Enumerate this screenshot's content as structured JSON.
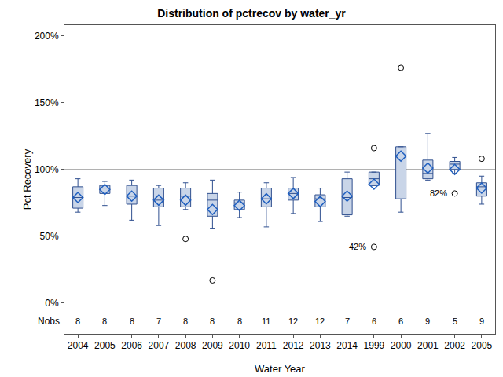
{
  "chart_data": {
    "type": "box",
    "title": "Distribution of pctrecov by water_yr",
    "x_label": "Water Year",
    "y_label": "Pct Recovery",
    "categories": [
      "2004",
      "2005",
      "2006",
      "2007",
      "2008",
      "2009",
      "2010",
      "2011",
      "2012",
      "2013",
      "2014",
      "1999",
      "2000",
      "2001",
      "2002",
      "2005"
    ],
    "lower_whisker": [
      68,
      73,
      62,
      58,
      70,
      56,
      64,
      57,
      67,
      61,
      65,
      88,
      68,
      92,
      97,
      74
    ],
    "q1": [
      71,
      82,
      74,
      72,
      72,
      65,
      70,
      72,
      77,
      72,
      66,
      88,
      78,
      93,
      100,
      80
    ],
    "median": [
      79,
      86,
      80,
      77,
      80,
      77,
      75,
      78,
      82,
      78,
      79,
      93,
      116,
      97,
      104,
      87
    ],
    "q3": [
      87,
      88,
      88,
      86,
      86,
      82,
      77,
      86,
      86,
      81,
      93,
      98,
      117,
      107,
      106,
      90
    ],
    "upper_whisker": [
      93,
      91,
      92,
      88,
      90,
      92,
      83,
      90,
      94,
      86,
      98,
      98,
      117,
      127,
      109,
      95
    ],
    "mean": [
      79,
      85,
      80,
      77,
      77,
      70,
      73,
      78,
      82,
      76,
      80,
      89,
      110,
      101,
      100,
      86
    ],
    "outliers": [
      [],
      [],
      [],
      [],
      [
        48
      ],
      [
        17
      ],
      [],
      [],
      [],
      [],
      [],
      [
        116,
        42
      ],
      [
        176
      ],
      [],
      [
        82
      ],
      [
        108
      ]
    ],
    "nobs_label": "Nobs",
    "nobs": [
      8,
      8,
      8,
      7,
      8,
      8,
      8,
      11,
      12,
      12,
      7,
      6,
      6,
      9,
      5,
      9
    ],
    "reference_line": 100,
    "annotations": [
      {
        "category_index": 11,
        "y": 42,
        "text": "42%"
      },
      {
        "category_index": 14,
        "y": 82,
        "text": "82%"
      }
    ],
    "color": "#c9d5e8",
    "ylim": [
      -23,
      208
    ],
    "yticks": [
      {
        "value": 0,
        "label": "0%"
      },
      {
        "value": 50,
        "label": "50%"
      },
      {
        "value": 100,
        "label": "100%"
      },
      {
        "value": 150,
        "label": "150%"
      },
      {
        "value": 200,
        "label": "200%"
      }
    ],
    "grid": false
  }
}
